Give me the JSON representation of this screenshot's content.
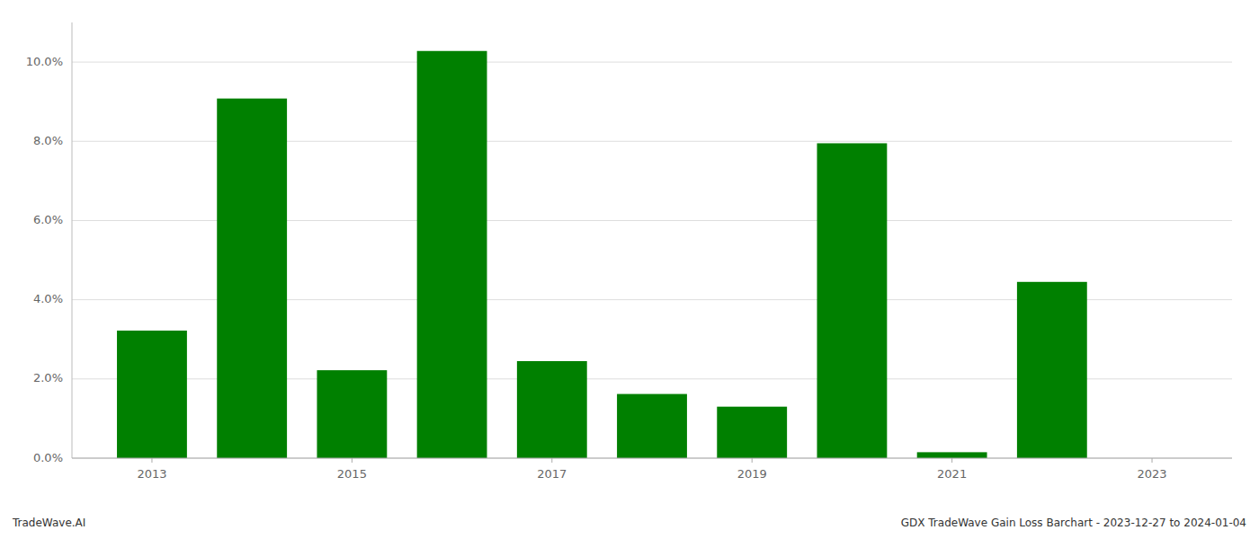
{
  "chart_data": {
    "type": "bar",
    "x": [
      2013,
      2014,
      2015,
      2016,
      2017,
      2018,
      2019,
      2020,
      2021,
      2022,
      2023
    ],
    "values": [
      3.22,
      9.08,
      2.22,
      10.28,
      2.45,
      1.62,
      1.3,
      7.95,
      0.15,
      4.45,
      0.0
    ],
    "color": "#008000",
    "xlim": [
      2012.2,
      2023.8
    ],
    "xticks": [
      2013,
      2015,
      2017,
      2019,
      2021,
      2023
    ],
    "ylim": [
      0,
      11.0
    ],
    "yticks": [
      {
        "value": 0.0,
        "label": "0.0%"
      },
      {
        "value": 2.0,
        "label": "2.0%"
      },
      {
        "value": 4.0,
        "label": "4.0%"
      },
      {
        "value": 6.0,
        "label": "6.0%"
      },
      {
        "value": 8.0,
        "label": "8.0%"
      },
      {
        "value": 10.0,
        "label": "10.0%"
      }
    ],
    "grid": true,
    "annotations": [
      "TradeWave.AI",
      "GDX TradeWave Gain Loss Barchart - 2023-12-27 to 2024-01-04"
    ]
  }
}
